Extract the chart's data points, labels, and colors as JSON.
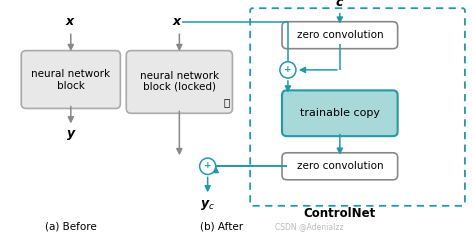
{
  "fig_width": 4.72,
  "fig_height": 2.41,
  "dpi": 100,
  "bg_color": "#ffffff",
  "gray_box_color": "#e8e8e8",
  "gray_box_edge": "#aaaaaa",
  "teal_box_color": "#a8d8d8",
  "teal_box_edge": "#2299aa",
  "teal_arrow_color": "#2299aa",
  "gray_arrow_color": "#888888",
  "dashed_border_color": "#2299aa",
  "white_box_color": "#ffffff",
  "white_box_edge": "#888888",
  "xlim": [
    0,
    10
  ],
  "ylim": [
    0,
    5
  ]
}
